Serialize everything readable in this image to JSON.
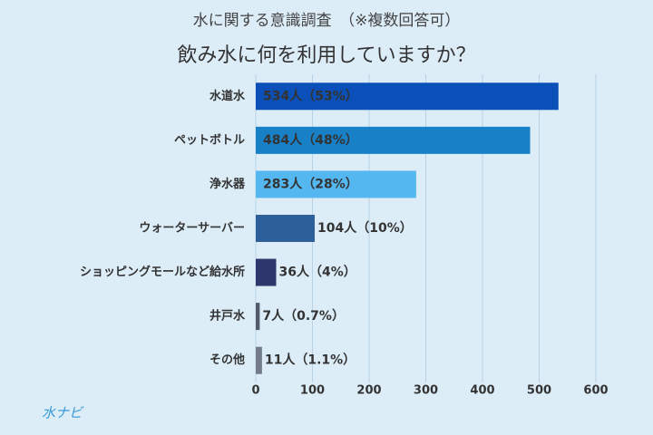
{
  "chart_data": {
    "type": "bar",
    "orientation": "horizontal",
    "title": "水に関する意識調査　（※複数回答可）",
    "subtitle": "飲み水に何を利用していますか？",
    "categories": [
      "水道水",
      "ペットボトル",
      "浄水器",
      "ウォーターサーバー",
      "ショッピングモールなど給水所",
      "井戸水",
      "その他"
    ],
    "values": [
      534,
      484,
      283,
      104,
      36,
      7,
      11
    ],
    "value_labels": [
      "534人（53%）",
      "484人（48%）",
      "283人（28%）",
      "104人（10%）",
      "36人（4%）",
      "7人（0.7%）",
      "11人（1.1%）"
    ],
    "colors": [
      "#0a50b8",
      "#1880c6",
      "#55b7f0",
      "#2d5f9b",
      "#2e376c",
      "#515b6b",
      "#737c88"
    ],
    "xlim": [
      0,
      600
    ],
    "xticks": [
      0,
      100,
      200,
      300,
      400,
      500,
      600
    ],
    "grid": true
  },
  "logo": "水ナビ"
}
